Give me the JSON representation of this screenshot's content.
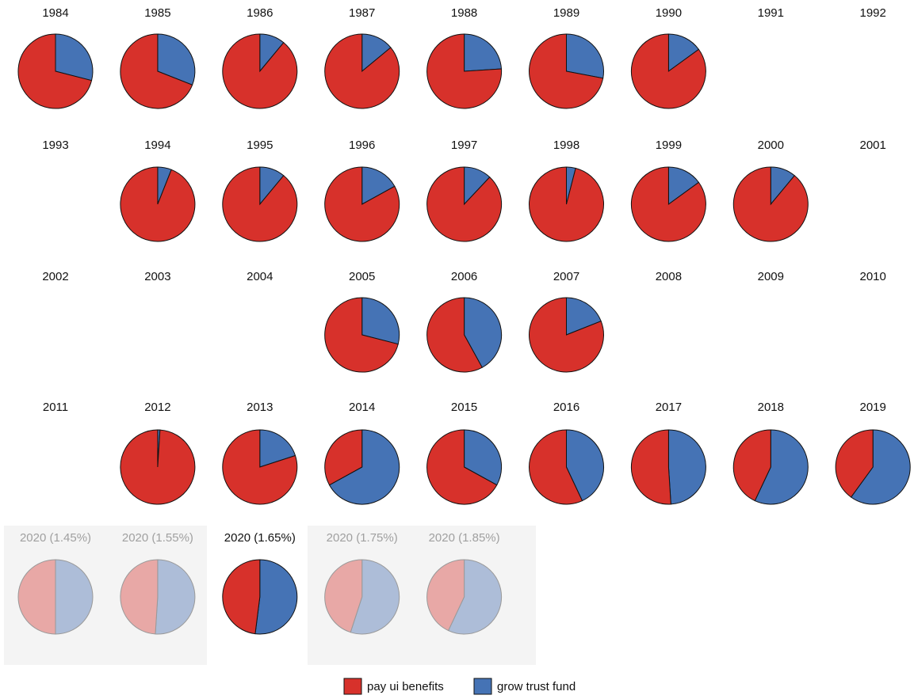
{
  "chart_data": {
    "type": "pie",
    "legend": [
      {
        "name": "pay ui benefits",
        "color": "#d7312b",
        "faded_color": "#e8a8a6"
      },
      {
        "name": "grow trust fund",
        "color": "#4573b5",
        "faded_color": "#adbdd8"
      }
    ],
    "panels": [
      {
        "title": "1984",
        "values": [
          71,
          29
        ]
      },
      {
        "title": "1985",
        "values": [
          69,
          31
        ]
      },
      {
        "title": "1986",
        "values": [
          89,
          11
        ]
      },
      {
        "title": "1987",
        "values": [
          86,
          14
        ]
      },
      {
        "title": "1988",
        "values": [
          76,
          24
        ]
      },
      {
        "title": "1989",
        "values": [
          72,
          28
        ]
      },
      {
        "title": "1990",
        "values": [
          85,
          15
        ]
      },
      {
        "title": "1991",
        "values": null
      },
      {
        "title": "1992",
        "values": null
      },
      {
        "title": "1993",
        "values": null
      },
      {
        "title": "1994",
        "values": [
          94,
          6
        ]
      },
      {
        "title": "1995",
        "values": [
          89,
          11
        ]
      },
      {
        "title": "1996",
        "values": [
          83,
          17
        ]
      },
      {
        "title": "1997",
        "values": [
          88,
          12
        ]
      },
      {
        "title": "1998",
        "values": [
          96,
          4
        ]
      },
      {
        "title": "1999",
        "values": [
          85,
          15
        ]
      },
      {
        "title": "2000",
        "values": [
          89,
          11
        ]
      },
      {
        "title": "2001",
        "values": null
      },
      {
        "title": "2002",
        "values": null
      },
      {
        "title": "2003",
        "values": null
      },
      {
        "title": "2004",
        "values": null
      },
      {
        "title": "2005",
        "values": [
          71,
          29
        ]
      },
      {
        "title": "2006",
        "values": [
          58,
          42
        ]
      },
      {
        "title": "2007",
        "values": [
          81,
          19
        ]
      },
      {
        "title": "2008",
        "values": null
      },
      {
        "title": "2009",
        "values": null
      },
      {
        "title": "2010",
        "values": null
      },
      {
        "title": "2011",
        "values": null
      },
      {
        "title": "2012",
        "values": [
          99,
          1
        ]
      },
      {
        "title": "2013",
        "values": [
          80,
          20
        ]
      },
      {
        "title": "2014",
        "values": [
          33,
          67
        ]
      },
      {
        "title": "2015",
        "values": [
          67,
          33
        ]
      },
      {
        "title": "2016",
        "values": [
          57,
          43
        ]
      },
      {
        "title": "2017",
        "values": [
          51,
          49
        ]
      },
      {
        "title": "2018",
        "values": [
          43,
          57
        ]
      },
      {
        "title": "2019",
        "values": [
          40,
          60
        ]
      },
      {
        "title": "2020 (1.45%)",
        "values": [
          50,
          50
        ],
        "faded": true
      },
      {
        "title": "2020 (1.55%)",
        "values": [
          49,
          51
        ],
        "faded": true
      },
      {
        "title": "2020 (1.65%)",
        "values": [
          48,
          52
        ],
        "faded": false
      },
      {
        "title": "2020 (1.75%)",
        "values": [
          45,
          55
        ],
        "faded": true
      },
      {
        "title": "2020 (1.85%)",
        "values": [
          43,
          57
        ],
        "faded": true
      }
    ]
  }
}
